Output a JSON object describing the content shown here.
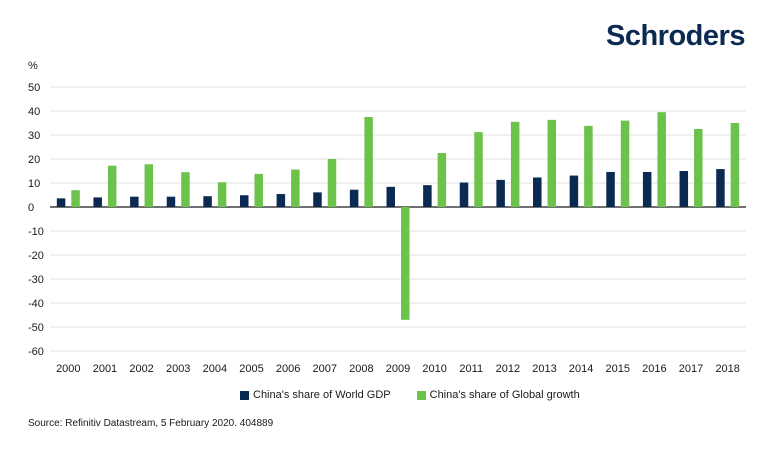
{
  "brand": "Schroders",
  "source": "Source: Refinitiv Datastream, 5 February 2020. 404889",
  "colors": {
    "gdp": "#0b2a52",
    "growth": "#6cc24a",
    "grid": "#d6d6d6",
    "axis": "#1a1a1a"
  },
  "chart_data": {
    "type": "bar",
    "title": "",
    "xlabel": "",
    "ylabel": "%",
    "ylim": [
      -60,
      50
    ],
    "yticks": [
      50,
      40,
      30,
      20,
      10,
      0,
      -10,
      -20,
      -30,
      -40,
      -50,
      -60
    ],
    "grid": true,
    "legend_position": "bottom",
    "categories": [
      "2000",
      "2001",
      "2002",
      "2003",
      "2004",
      "2005",
      "2006",
      "2007",
      "2008",
      "2009",
      "2010",
      "2011",
      "2012",
      "2013",
      "2014",
      "2015",
      "2016",
      "2017",
      "2018"
    ],
    "series": [
      {
        "name": "China's share of World GDP",
        "values": [
          3.6,
          4.0,
          4.3,
          4.3,
          4.5,
          4.9,
          5.4,
          6.1,
          7.2,
          8.4,
          9.1,
          10.2,
          11.3,
          12.3,
          13.1,
          14.6,
          14.6,
          15.0,
          15.8
        ]
      },
      {
        "name": "China's share of Global growth",
        "values": [
          7.0,
          17.2,
          17.8,
          14.5,
          10.3,
          13.8,
          15.6,
          20.0,
          37.5,
          -47.0,
          22.5,
          31.2,
          35.5,
          36.3,
          33.8,
          36.0,
          39.5,
          32.5,
          35.0
        ]
      }
    ]
  }
}
